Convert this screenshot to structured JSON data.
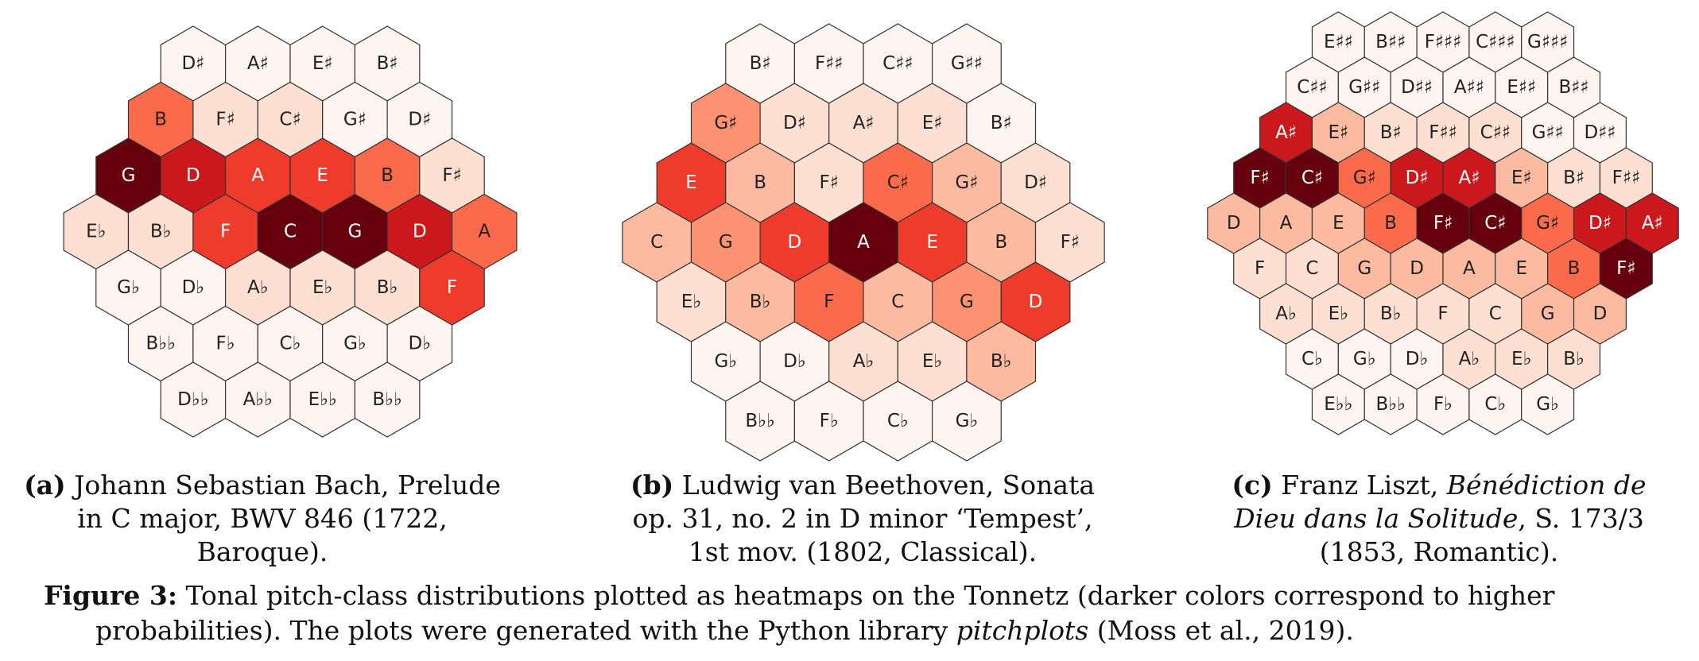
{
  "figure": {
    "label": "Figure 3:",
    "caption_text": "Tonal pitch-class distributions plotted as heatmaps on the Tonnetz (darker colors correspond to higher probabilities). The plots were generated with the Python library",
    "caption_library": "pitchplots",
    "caption_citation": "(Moss et al., 2019)."
  },
  "colormap": [
    "#fff5f0",
    "#fee0d2",
    "#fcbba1",
    "#fc9272",
    "#fb6a4a",
    "#ef3b2c",
    "#cb181d",
    "#67000d"
  ],
  "chart_data": [
    {
      "type": "heatmap",
      "label": "(a)",
      "caption_plain": "Johann Sebastian Bach, Prelude in C major, BWV 846 (1722, Baroque).",
      "rows": [
        {
          "labels": [
            "D♯",
            "A♯",
            "E♯",
            "B♯"
          ],
          "values": [
            0,
            0,
            0,
            0
          ]
        },
        {
          "labels": [
            "B",
            "F♯",
            "C♯",
            "G♯",
            "D♯"
          ],
          "values": [
            0.5,
            0.15,
            0.08,
            0,
            0
          ]
        },
        {
          "labels": [
            "G",
            "D",
            "A",
            "E",
            "B",
            "F♯"
          ],
          "values": [
            1.0,
            0.85,
            0.65,
            0.7,
            0.5,
            0.15
          ]
        },
        {
          "labels": [
            "E♭",
            "B♭",
            "F",
            "C",
            "G",
            "D",
            "A"
          ],
          "values": [
            0.08,
            0.12,
            0.7,
            1.0,
            1.0,
            0.85,
            0.55
          ]
        },
        {
          "labels": [
            "G♭",
            "D♭",
            "A♭",
            "E♭",
            "B♭",
            "F"
          ],
          "values": [
            0,
            0,
            0.08,
            0.08,
            0.12,
            0.7
          ]
        },
        {
          "labels": [
            "B♭♭",
            "F♭",
            "C♭",
            "G♭",
            "D♭"
          ],
          "values": [
            0,
            0,
            0,
            0,
            0
          ]
        },
        {
          "labels": [
            "D♭♭",
            "A♭♭",
            "E♭♭",
            "B♭♭"
          ],
          "values": [
            0,
            0,
            0,
            0
          ]
        }
      ]
    },
    {
      "type": "heatmap",
      "label": "(b)",
      "caption_plain": "Ludwig van Beethoven, Sonata op. 31, no. 2 in D minor ‘Tempest’, 1st mov. (1802, Classical).",
      "rows": [
        {
          "labels": [
            "B♯",
            "F♯♯",
            "C♯♯",
            "G♯♯"
          ],
          "values": [
            0.03,
            0.02,
            0.02,
            0.02
          ]
        },
        {
          "labels": [
            "G♯",
            "D♯",
            "A♯",
            "E♯",
            "B♯"
          ],
          "values": [
            0.38,
            0.12,
            0.08,
            0.08,
            0.06
          ]
        },
        {
          "labels": [
            "E",
            "B",
            "F♯",
            "C♯",
            "G♯",
            "D♯"
          ],
          "values": [
            0.7,
            0.28,
            0.18,
            0.55,
            0.3,
            0.08
          ]
        },
        {
          "labels": [
            "C",
            "G",
            "D",
            "A",
            "E",
            "B",
            "F♯"
          ],
          "values": [
            0.28,
            0.42,
            0.75,
            1.0,
            0.65,
            0.28,
            0.18
          ]
        },
        {
          "labels": [
            "E♭",
            "B♭",
            "F",
            "C",
            "G",
            "D"
          ],
          "values": [
            0.12,
            0.3,
            0.55,
            0.28,
            0.42,
            0.75
          ]
        },
        {
          "labels": [
            "G♭",
            "D♭",
            "A♭",
            "E♭",
            "B♭"
          ],
          "values": [
            0.03,
            0.05,
            0.08,
            0.12,
            0.3
          ]
        },
        {
          "labels": [
            "B♭♭",
            "F♭",
            "C♭",
            "G♭"
          ],
          "values": [
            0.02,
            0.02,
            0.02,
            0.03
          ]
        }
      ]
    },
    {
      "type": "heatmap",
      "label": "(c)",
      "caption_plain": "Franz Liszt, Bénédiction de Dieu dans la Solitude, S. 173/3 (1853, Romantic).",
      "caption_title": "Bénédiction de Dieu dans la Solitude",
      "caption_rest": ", S. 173/3 (1853, Romantic).",
      "rows": [
        {
          "labels": [
            "E♯♯",
            "B♯♯",
            "F♯♯♯",
            "C♯♯♯",
            "G♯♯♯"
          ],
          "values": [
            0,
            0,
            0,
            0,
            0
          ]
        },
        {
          "labels": [
            "C♯♯",
            "G♯♯",
            "D♯♯",
            "A♯♯",
            "E♯♯",
            "B♯♯"
          ],
          "values": [
            0.02,
            0.02,
            0.03,
            0.02,
            0.02,
            0.02
          ]
        },
        {
          "labels": [
            "A♯",
            "E♯",
            "B♯",
            "F♯♯",
            "C♯♯",
            "G♯♯",
            "D♯♯"
          ],
          "values": [
            0.8,
            0.3,
            0.15,
            0.1,
            0.08,
            0.04,
            0.02
          ]
        },
        {
          "labels": [
            "F♯",
            "C♯",
            "G♯",
            "D♯",
            "A♯",
            "E♯",
            "B♯",
            "F♯♯"
          ],
          "values": [
            1.0,
            1.0,
            0.5,
            0.8,
            0.8,
            0.3,
            0.15,
            0.1
          ]
        },
        {
          "labels": [
            "D",
            "A",
            "E",
            "B",
            "F♯",
            "C♯",
            "G♯",
            "D♯",
            "A♯"
          ],
          "values": [
            0.3,
            0.3,
            0.3,
            0.5,
            1.0,
            1.0,
            0.5,
            0.8,
            0.8
          ]
        },
        {
          "labels": [
            "F",
            "C",
            "G",
            "D",
            "A",
            "E",
            "B",
            "F♯"
          ],
          "values": [
            0.2,
            0.2,
            0.22,
            0.3,
            0.3,
            0.3,
            0.5,
            1.0
          ]
        },
        {
          "labels": [
            "A♭",
            "E♭",
            "B♭",
            "F",
            "C",
            "G",
            "D"
          ],
          "values": [
            0.1,
            0.12,
            0.18,
            0.2,
            0.2,
            0.22,
            0.3
          ]
        },
        {
          "labels": [
            "C♭",
            "G♭",
            "D♭",
            "A♭",
            "E♭",
            "B♭"
          ],
          "values": [
            0.04,
            0.06,
            0.06,
            0.1,
            0.12,
            0.18
          ]
        },
        {
          "labels": [
            "E♭♭",
            "B♭♭",
            "F♭",
            "C♭",
            "G♭"
          ],
          "values": [
            0,
            0.02,
            0.03,
            0.04,
            0.06
          ]
        }
      ]
    }
  ]
}
